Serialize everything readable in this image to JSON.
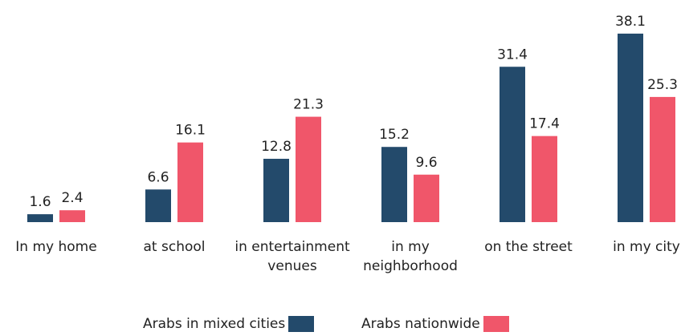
{
  "chart_data": {
    "type": "bar",
    "categories": [
      "In my home",
      "at school",
      "in entertainment venues",
      "in my neighborhood",
      "on the street",
      "in my city"
    ],
    "series": [
      {
        "name": "Arabs in mixed cities",
        "color": "#234a6b",
        "values": [
          1.6,
          6.6,
          12.8,
          15.2,
          31.4,
          38.1
        ]
      },
      {
        "name": "Arabs nationwide",
        "color": "#f0566a",
        "values": [
          2.4,
          16.1,
          21.3,
          9.6,
          17.4,
          25.3
        ]
      }
    ],
    "legend": "bottom"
  }
}
